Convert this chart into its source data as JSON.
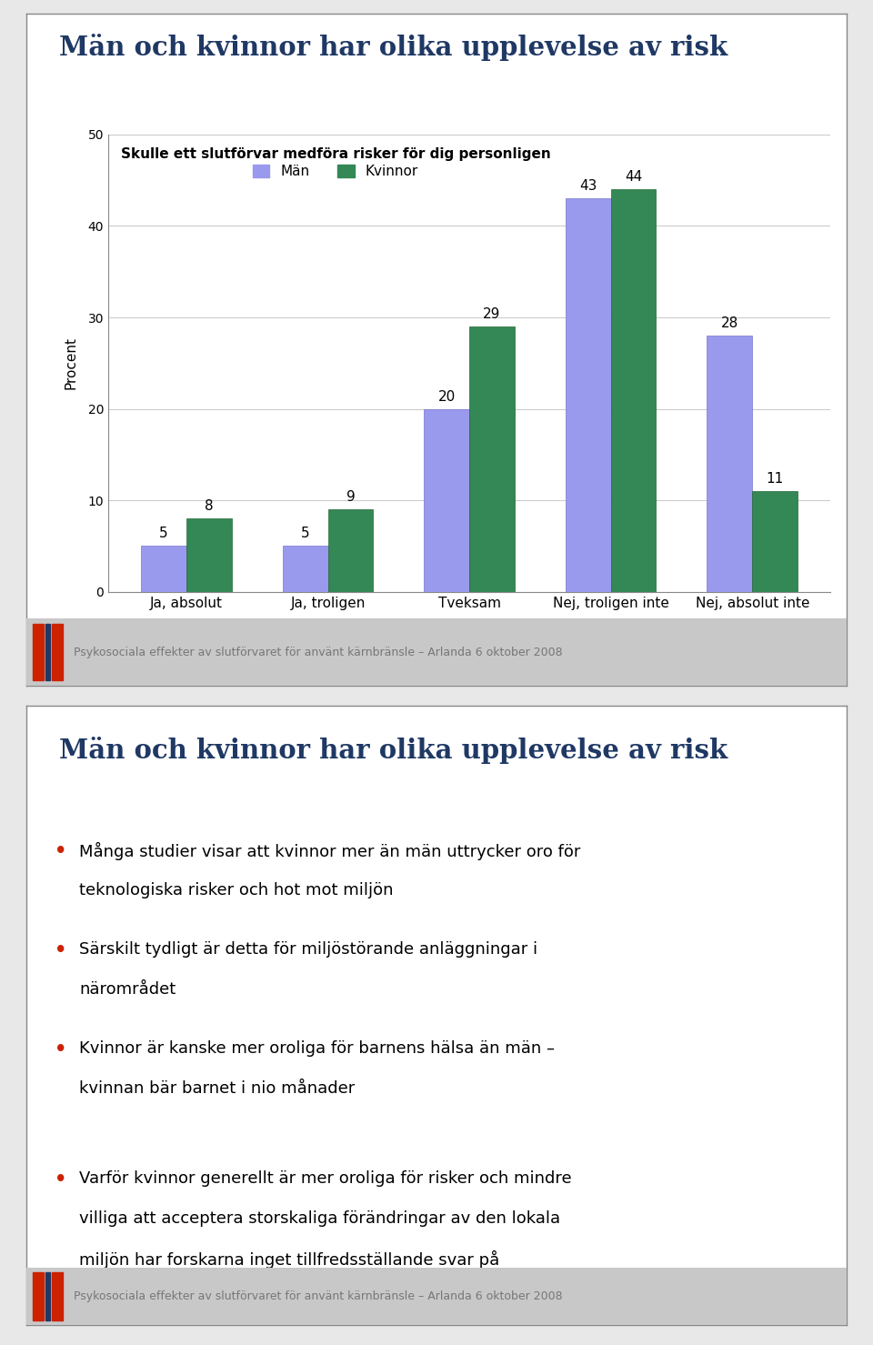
{
  "title": "Män och kvinnor har olika upplevelse av risk",
  "title_color": "#1F3864",
  "subtitle": "Skulle ett slutförvar medföra risker för dig personligen",
  "categories": [
    "Ja, absolut",
    "Ja, troligen",
    "Tveksam",
    "Nej, troligen inte",
    "Nej, absolut inte"
  ],
  "man_values": [
    5,
    5,
    20,
    43,
    28
  ],
  "kvinnor_values": [
    8,
    9,
    29,
    44,
    11
  ],
  "man_color": "#9999EE",
  "kvinnor_color": "#338855",
  "ylabel": "Procent",
  "ylim": [
    0,
    50
  ],
  "yticks": [
    0,
    10,
    20,
    30,
    40,
    50
  ],
  "legend_man": "Män",
  "legend_kvinnor": "Kvinnor",
  "footer_text": "Psykosociala effekter av slutförvaret för använt kärnbränsle – Arlanda 6 oktober 2008",
  "panel2_title": "Män och kvinnor har olika upplevelse av risk",
  "panel2_title_color": "#1F3864",
  "bullet_points": [
    "Många studier visar att kvinnor mer än män uttrycker oro för\nteknologiska risker och hot mot miljön",
    "Särskilt tydligt är detta för miljöstörande anläggningar i\nnärområdet",
    "Kvinnor är kanske mer oroliga för barnens hälsa än män –\nkvinnan bär barnet i nio månader",
    "Varför kvinnor generellt är mer oroliga för risker och mindre\nvilliga att acceptera storskaliga förändringar av den lokala\nmiljön har forskarna inget tillfredsställande svar på"
  ],
  "bullet_color": "#CC2200",
  "background_color": "#FFFFFF",
  "footer_bg": "#C8C8C8",
  "grid_color": "#CCCCCC",
  "outer_bg": "#E8E8E8",
  "border_color": "#888888",
  "skb_red": "#CC2200",
  "skb_blue": "#1F3864",
  "skb_text_color": "#777777"
}
